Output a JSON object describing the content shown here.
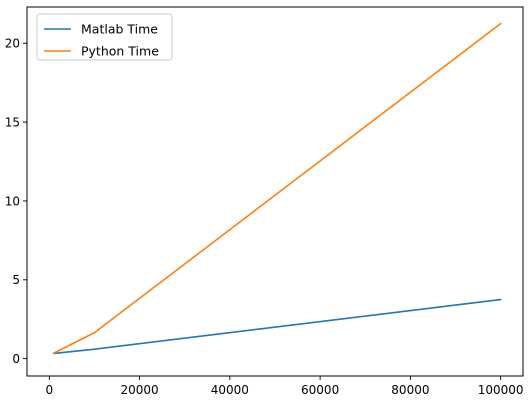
{
  "chart_data": {
    "type": "line",
    "title": "",
    "xlabel": "",
    "ylabel": "",
    "xlim": [
      -4950,
      104950
    ],
    "ylim": [
      -1.1,
      22.3
    ],
    "x_ticks": [
      0,
      20000,
      40000,
      60000,
      80000,
      100000
    ],
    "x_tick_labels": [
      "0",
      "20000",
      "40000",
      "60000",
      "80000",
      "100000"
    ],
    "y_ticks": [
      0,
      5,
      10,
      15,
      20
    ],
    "y_tick_labels": [
      "0",
      "5",
      "10",
      "15",
      "20"
    ],
    "grid": false,
    "legend_position": "upper-left",
    "x": [
      1000,
      10000,
      100000
    ],
    "series": [
      {
        "name": "Matlab Time",
        "color": "#1f77b4",
        "values": [
          0.33,
          0.6,
          3.75
        ]
      },
      {
        "name": "Python Time",
        "color": "#ff7f0e",
        "values": [
          0.35,
          1.65,
          21.25
        ]
      }
    ]
  }
}
